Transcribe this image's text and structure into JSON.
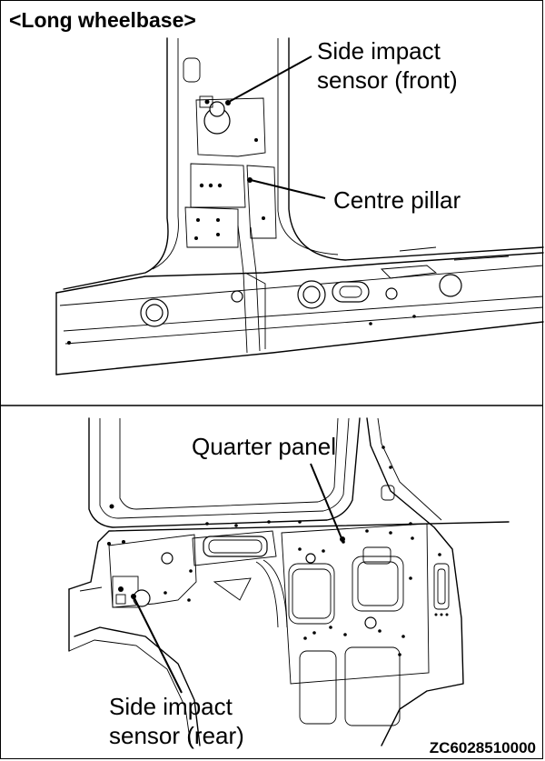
{
  "title": "<Long wheelbase>",
  "callouts": {
    "side_impact_front_line1": "Side impact",
    "side_impact_front_line2": "sensor (front)",
    "centre_pillar": "Centre pillar",
    "quarter_panel": "Quarter panel",
    "side_impact_rear_line1": "Side impact",
    "side_impact_rear_line2": "sensor (rear)"
  },
  "figure_code": "ZC6028510000"
}
